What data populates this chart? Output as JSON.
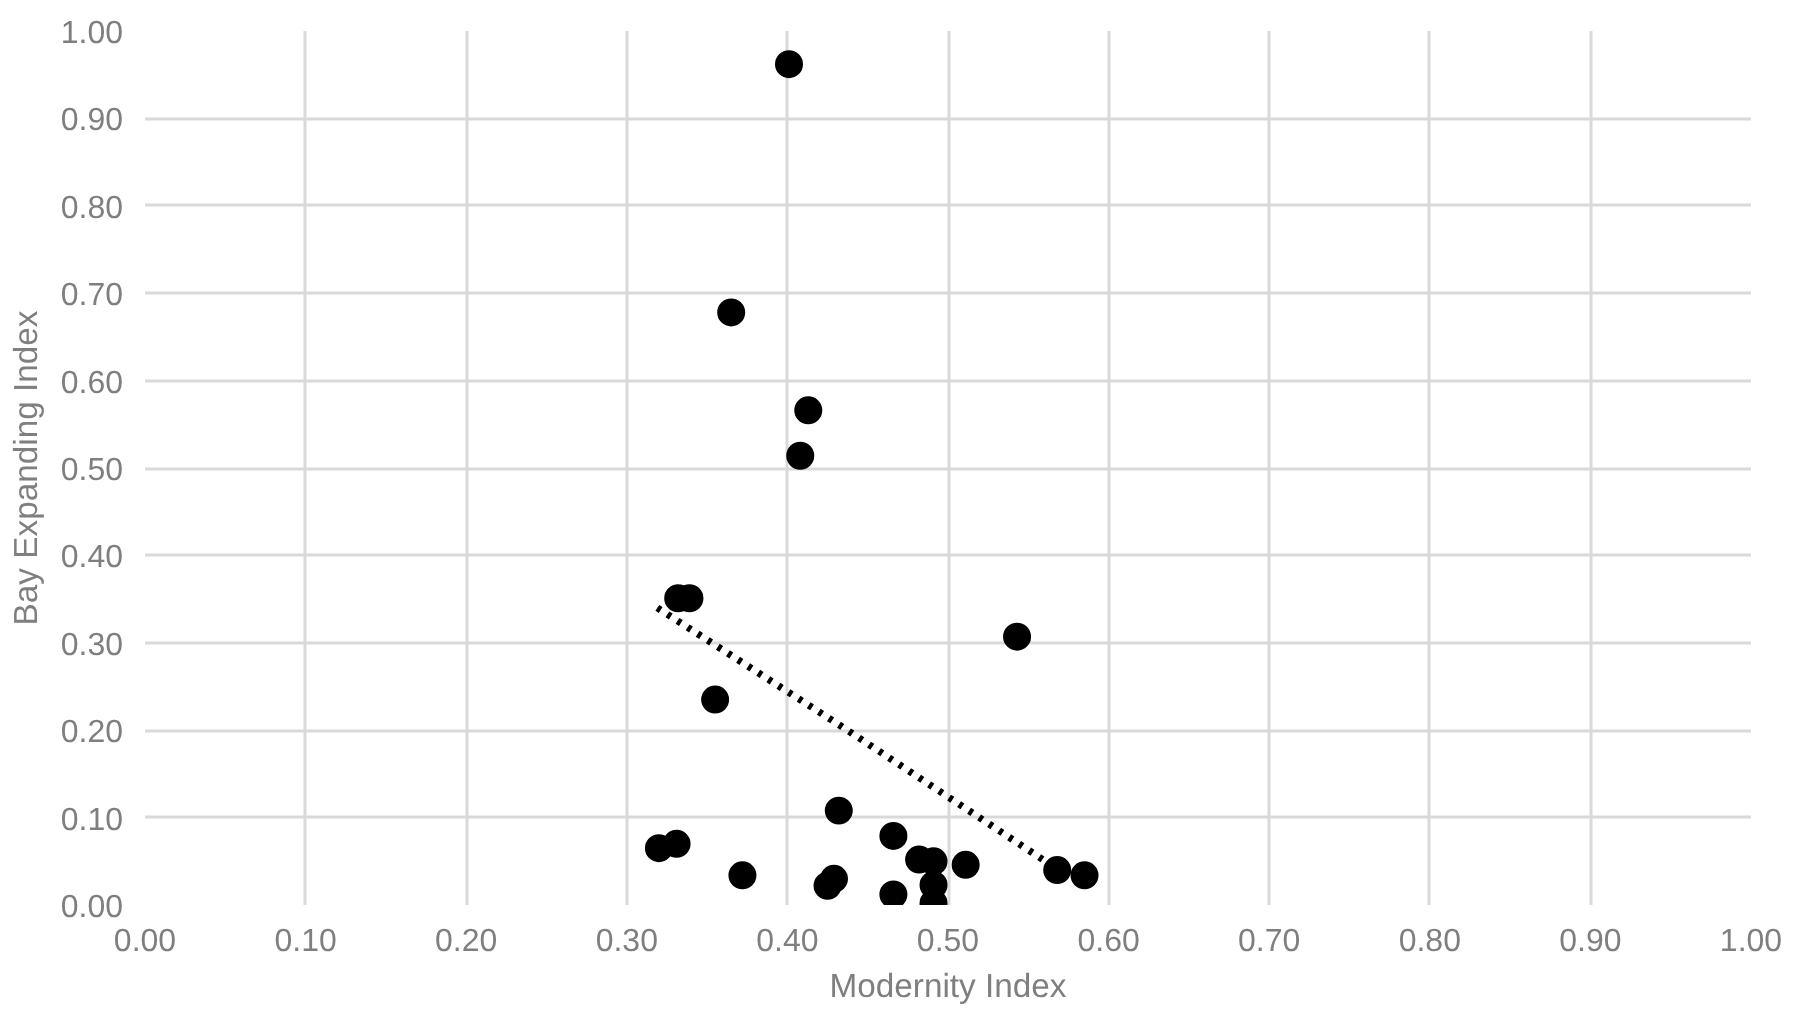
{
  "chart_data": {
    "type": "scatter",
    "xlabel": "Modernity Index",
    "ylabel": "Bay Expanding Index",
    "marker": "circle",
    "grid": true,
    "xlim": [
      0,
      1
    ],
    "ylim": [
      0,
      1
    ],
    "xticks": [
      {
        "value": 0,
        "label": "0.00"
      },
      {
        "value": 0.1,
        "label": "0.10"
      },
      {
        "value": 0.2,
        "label": "0.20"
      },
      {
        "value": 0.3,
        "label": "0.30"
      },
      {
        "value": 0.4,
        "label": "0.40"
      },
      {
        "value": 0.5,
        "label": "0.50"
      },
      {
        "value": 0.6,
        "label": "0.60"
      },
      {
        "value": 0.7,
        "label": "0.70"
      },
      {
        "value": 0.8,
        "label": "0.80"
      },
      {
        "value": 0.9,
        "label": "0.90"
      },
      {
        "value": 1,
        "label": "1.00"
      }
    ],
    "yticks": [
      {
        "value": 0,
        "label": "0.00"
      },
      {
        "value": 0.1,
        "label": "0.10"
      },
      {
        "value": 0.2,
        "label": "0.20"
      },
      {
        "value": 0.3,
        "label": "0.30"
      },
      {
        "value": 0.4,
        "label": "0.40"
      },
      {
        "value": 0.5,
        "label": "0.50"
      },
      {
        "value": 0.6,
        "label": "0.60"
      },
      {
        "value": 0.7,
        "label": "0.70"
      },
      {
        "value": 0.8,
        "label": "0.80"
      },
      {
        "value": 0.9,
        "label": "0.90"
      },
      {
        "value": 1,
        "label": "1.00"
      }
    ],
    "series": [
      {
        "color": "#000000",
        "x": [
          0.401,
          0.365,
          0.413,
          0.408,
          0.332,
          0.339,
          0.543,
          0.355,
          0.432,
          0.32,
          0.331,
          0.372,
          0.425,
          0.429,
          0.466,
          0.482,
          0.491,
          0.491,
          0.491,
          0.466,
          0.511,
          0.568,
          0.585
        ],
        "values": [
          0.962,
          0.678,
          0.566,
          0.514,
          0.351,
          0.351,
          0.307,
          0.235,
          0.108,
          0.065,
          0.07,
          0.034,
          0.022,
          0.03,
          0.079,
          0.052,
          0.05,
          0.023,
          0.002,
          0.012,
          0.046,
          0.04,
          0.034
        ]
      },
      {
        "type": "line",
        "color": "#000000",
        "line_style": "dotted",
        "marker": "none",
        "x": [
          0.319,
          0.434,
          0.559
        ],
        "values": [
          0.34,
          0.204,
          0.052
        ]
      }
    ]
  }
}
